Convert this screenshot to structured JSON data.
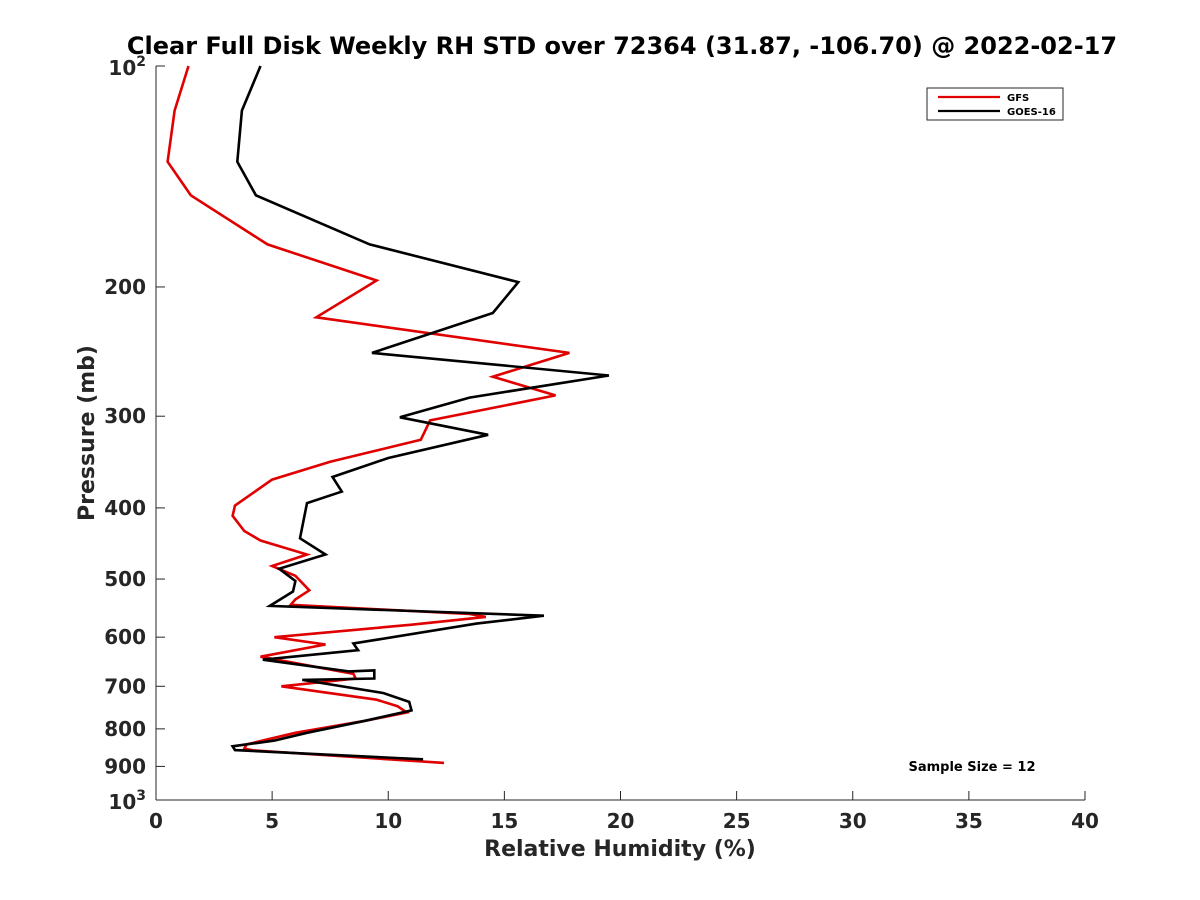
{
  "chart_data": {
    "type": "line",
    "title": "Clear Full Disk Weekly RH STD over 72364 (31.87, -106.70) @ 2022-02-17",
    "xlabel": "Relative Humidity (%)",
    "ylabel": "Pressure (mb)",
    "xlim": [
      0,
      40
    ],
    "ylim": [
      100,
      1000
    ],
    "y_scale": "log",
    "y_reversed": true,
    "xticks": [
      0,
      5,
      10,
      15,
      20,
      25,
      30,
      35,
      40
    ],
    "yticks": [
      {
        "value": 100,
        "base": "10",
        "exp": "2"
      },
      {
        "value": 200,
        "label": "200"
      },
      {
        "value": 300,
        "label": "300"
      },
      {
        "value": 400,
        "label": "400"
      },
      {
        "value": 500,
        "label": "500"
      },
      {
        "value": 600,
        "label": "600"
      },
      {
        "value": 700,
        "label": "700"
      },
      {
        "value": 800,
        "label": "800"
      },
      {
        "value": 900,
        "label": "900"
      },
      {
        "value": 1000,
        "base": "10",
        "exp": "3"
      }
    ],
    "grid": false,
    "legend_position": "top-right",
    "annotation": "Sample Size = 12",
    "series": [
      {
        "name": "GFS",
        "color": "#e00000",
        "points": [
          [
            1.4,
            100
          ],
          [
            0.8,
            115
          ],
          [
            0.5,
            135
          ],
          [
            1.5,
            150
          ],
          [
            4.8,
            175
          ],
          [
            9.5,
            196
          ],
          [
            6.9,
            220
          ],
          [
            17.8,
            246
          ],
          [
            14.5,
            265
          ],
          [
            17.2,
            281
          ],
          [
            11.8,
            304
          ],
          [
            11.4,
            323
          ],
          [
            7.5,
            346
          ],
          [
            5.0,
            366
          ],
          [
            3.4,
            397
          ],
          [
            3.3,
            410
          ],
          [
            3.8,
            430
          ],
          [
            4.5,
            443
          ],
          [
            6.5,
            463
          ],
          [
            5.0,
            480
          ],
          [
            6.0,
            495
          ],
          [
            6.6,
            518
          ],
          [
            6.0,
            533
          ],
          [
            5.8,
            542
          ],
          [
            13.5,
            558
          ],
          [
            14.2,
            563
          ],
          [
            11.0,
            577
          ],
          [
            5.1,
            600
          ],
          [
            7.3,
            614
          ],
          [
            4.5,
            638
          ],
          [
            8.5,
            673
          ],
          [
            8.6,
            683
          ],
          [
            5.4,
            700
          ],
          [
            9.5,
            730
          ],
          [
            10.4,
            745
          ],
          [
            10.8,
            760
          ],
          [
            9.0,
            780
          ],
          [
            6.0,
            810
          ],
          [
            3.9,
            840
          ],
          [
            3.8,
            851
          ],
          [
            4.2,
            856
          ],
          [
            12.4,
            890
          ]
        ]
      },
      {
        "name": "GOES-16",
        "color": "#000000",
        "points": [
          [
            4.5,
            100
          ],
          [
            3.7,
            115
          ],
          [
            3.5,
            135
          ],
          [
            4.3,
            150
          ],
          [
            9.2,
            175
          ],
          [
            15.6,
            197
          ],
          [
            14.5,
            217
          ],
          [
            9.3,
            246
          ],
          [
            19.5,
            264
          ],
          [
            13.5,
            283
          ],
          [
            10.5,
            301
          ],
          [
            14.3,
            318
          ],
          [
            10.0,
            342
          ],
          [
            7.6,
            363
          ],
          [
            8.0,
            380
          ],
          [
            6.5,
            394
          ],
          [
            6.2,
            440
          ],
          [
            7.3,
            463
          ],
          [
            5.3,
            484
          ],
          [
            6.0,
            503
          ],
          [
            5.9,
            520
          ],
          [
            4.9,
            544
          ],
          [
            16.7,
            561
          ],
          [
            13.8,
            575
          ],
          [
            8.5,
            612
          ],
          [
            8.7,
            625
          ],
          [
            4.6,
            644
          ],
          [
            8.3,
            668
          ],
          [
            9.4,
            666
          ],
          [
            9.4,
            683
          ],
          [
            6.3,
            686
          ],
          [
            9.8,
            715
          ],
          [
            10.9,
            735
          ],
          [
            11.0,
            755
          ],
          [
            9.0,
            780
          ],
          [
            6.5,
            810
          ],
          [
            5.1,
            830
          ],
          [
            3.3,
            845
          ],
          [
            3.4,
            855
          ],
          [
            11.5,
            880
          ]
        ]
      }
    ]
  }
}
